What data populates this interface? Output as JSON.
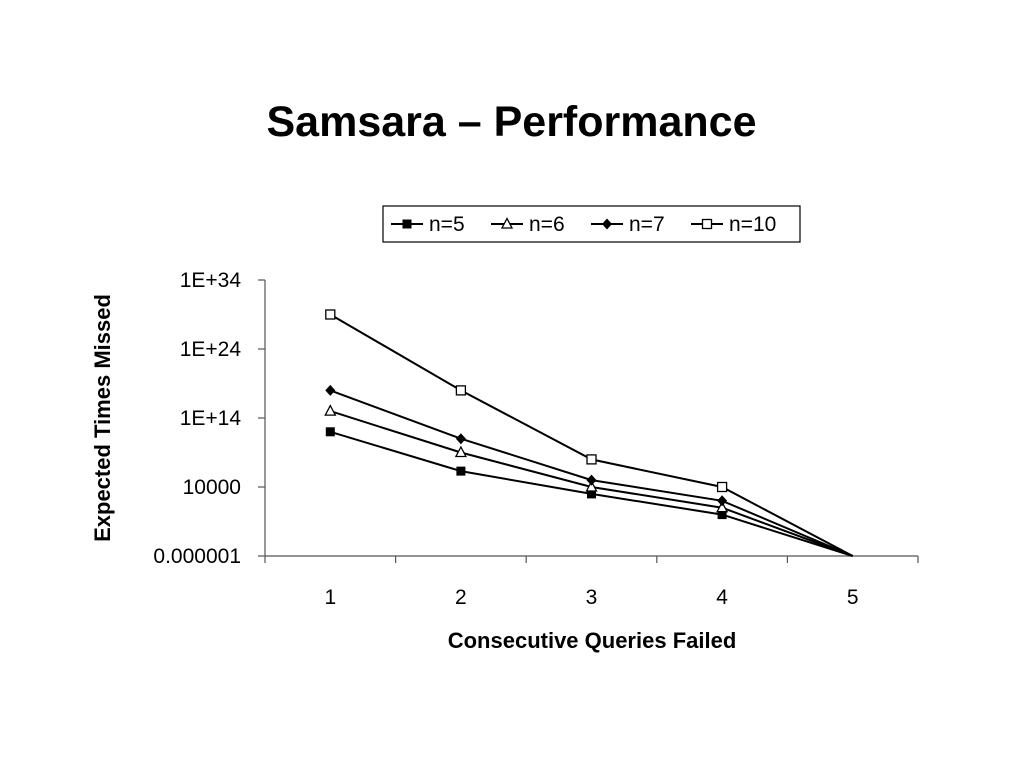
{
  "slide": {
    "title": "Samsara – Performance"
  },
  "chart_data": {
    "type": "line",
    "title": "",
    "xlabel": "Consecutive Queries Failed",
    "ylabel": "Expected Times Missed",
    "x": [
      1,
      2,
      3,
      4,
      5
    ],
    "y_scale": "log",
    "ylim": [
      1e-06,
      1e+34
    ],
    "y_ticks": [
      1e-06,
      10000,
      100000000000000.0,
      1e+24,
      1e+34
    ],
    "y_tick_labels": [
      "0.000001",
      "10000",
      "1E+14",
      "1E+24",
      "1E+34"
    ],
    "x_tick_labels": [
      "1",
      "2",
      "3",
      "4",
      "5"
    ],
    "legend_position": "top",
    "grid": false,
    "series": [
      {
        "name": "n=5",
        "marker": "filled-square",
        "values": [
          1000000000000.0,
          2000000.0,
          1000.0,
          1,
          1e-06
        ]
      },
      {
        "name": "n=6",
        "marker": "hollow-triangle",
        "values": [
          1000000000000000.0,
          1000000000.0,
          10000.0,
          10,
          1e-06
        ]
      },
      {
        "name": "n=7",
        "marker": "filled-diamond",
        "values": [
          1e+18,
          100000000000.0,
          100000.0,
          100,
          1e-06
        ]
      },
      {
        "name": "n=10",
        "marker": "hollow-square",
        "values": [
          1e+29,
          1e+18,
          100000000.0,
          10000.0,
          1e-06
        ]
      }
    ],
    "line_color": "#000000"
  }
}
